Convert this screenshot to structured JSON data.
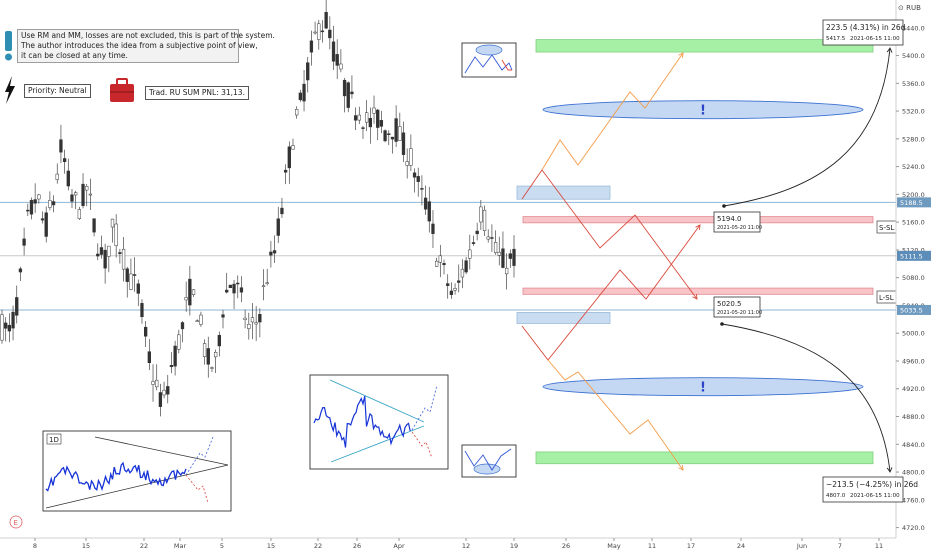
{
  "chart_data": {
    "type": "candlestick",
    "currency_label": "RUB",
    "y_ticks": [
      5440.0,
      5400.0,
      5360.0,
      5320.0,
      5280.0,
      5240.0,
      5200.0,
      5160.0,
      5120.0,
      5080.0,
      5040.0,
      5000.0,
      4960.0,
      4920.0,
      4880.0,
      4840.0,
      4800.0,
      4760.0,
      4720.0
    ],
    "ylim": [
      4705,
      5480
    ],
    "x_ticks": [
      "8",
      "15",
      "22",
      "Mar",
      "5",
      "15",
      "22",
      "26",
      "Apr",
      "12",
      "19",
      "26",
      "May",
      "11",
      "17",
      "24",
      "Jun",
      "7",
      "11"
    ],
    "price_marks": [
      {
        "label": "5188.5",
        "value": 5188.5,
        "color": "#5b8db8"
      },
      {
        "label": "5111.5",
        "value": 5111.5,
        "color": "#5b8db8"
      },
      {
        "label": "5033.5",
        "value": 5033.5,
        "color": "#5b8db8"
      }
    ],
    "price_path_approx": [
      5010,
      5000,
      5060,
      5160,
      5200,
      5150,
      5190,
      5270,
      5200,
      5180,
      5210,
      5140,
      5100,
      5150,
      5120,
      5080,
      5060,
      4980,
      4920,
      4900,
      4960,
      5000,
      5060,
      5030,
      4960,
      4950,
      5050,
      5080,
      5050,
      5000,
      5020,
      5080,
      5120,
      5200,
      5280,
      5330,
      5390,
      5440,
      5450,
      5400,
      5360,
      5330,
      5320,
      5300,
      5310,
      5290,
      5300,
      5270,
      5250,
      5200,
      5180,
      5110,
      5080,
      5050,
      5090,
      5120,
      5180,
      5150,
      5110,
      5100,
      5110
    ],
    "target_up": {
      "title": "223.5 (4.31%) in 26d",
      "detail_price": "5417.5",
      "detail_date": "2021-06-15  11:00"
    },
    "target_down": {
      "title": "−213.5 (−4.25%) in 26d",
      "detail_price": "4807.0",
      "detail_date": "2021-06-15  11:00"
    },
    "level_upper": {
      "price": "5194.0",
      "date": "2021-05-20 11:00"
    },
    "level_lower": {
      "price": "5020.5",
      "date": "2021-05-20 11:00"
    },
    "sl_labels": [
      "S-SL",
      "L-SL"
    ],
    "exclaim": "!",
    "timeframe": "1D",
    "colors": {
      "green": "#a6f0a6",
      "red": "#f8c4c8",
      "blue": "#c9dcf0",
      "ellipse": "#c4d8f3",
      "orange": "#f59b47",
      "redline": "#d9493b",
      "candle": "#444444"
    }
  },
  "annotations": {
    "note_lines": [
      "Use RM and MM, losses are not excluded, this is part of the system.",
      "The author introduces the idea from a subjective point of view,",
      " it can be closed at any time."
    ],
    "priority": "Priority: Neutral",
    "pnl": "Trad. RU SUM PNL: 31,13."
  }
}
